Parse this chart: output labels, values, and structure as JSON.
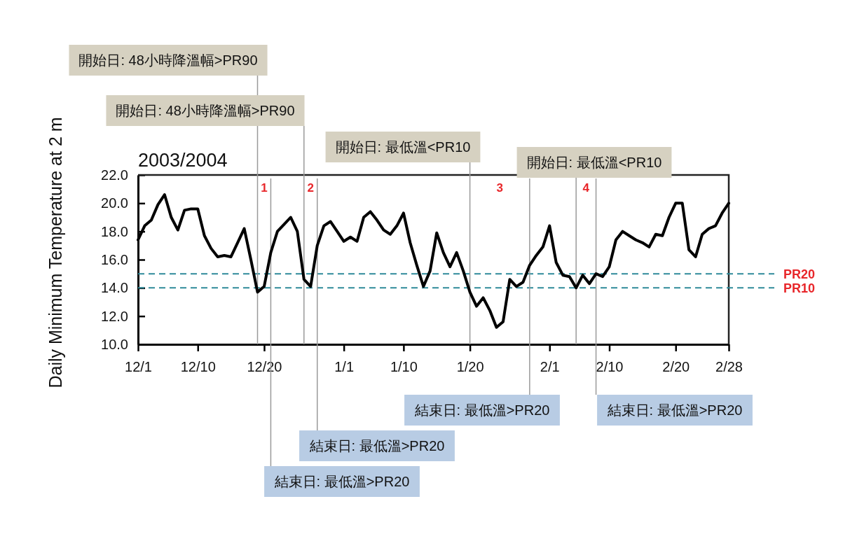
{
  "chart_data": {
    "type": "line",
    "title": "2003/2004",
    "ylabel": "Daily Minimum Temperature at 2 m",
    "x": [
      "2003-12-01",
      "2003-12-02",
      "2003-12-03",
      "2003-12-04",
      "2003-12-05",
      "2003-12-06",
      "2003-12-07",
      "2003-12-08",
      "2003-12-09",
      "2003-12-10",
      "2003-12-11",
      "2003-12-12",
      "2003-12-13",
      "2003-12-14",
      "2003-12-15",
      "2003-12-16",
      "2003-12-17",
      "2003-12-18",
      "2003-12-19",
      "2003-12-20",
      "2003-12-21",
      "2003-12-22",
      "2003-12-23",
      "2003-12-24",
      "2003-12-25",
      "2003-12-26",
      "2003-12-27",
      "2003-12-28",
      "2003-12-29",
      "2003-12-30",
      "2003-12-31",
      "2004-01-01",
      "2004-01-02",
      "2004-01-03",
      "2004-01-04",
      "2004-01-05",
      "2004-01-06",
      "2004-01-07",
      "2004-01-08",
      "2004-01-09",
      "2004-01-10",
      "2004-01-11",
      "2004-01-12",
      "2004-01-13",
      "2004-01-14",
      "2004-01-15",
      "2004-01-16",
      "2004-01-17",
      "2004-01-18",
      "2004-01-19",
      "2004-01-20",
      "2004-01-21",
      "2004-01-22",
      "2004-01-23",
      "2004-01-24",
      "2004-01-25",
      "2004-01-26",
      "2004-01-27",
      "2004-01-28",
      "2004-01-29",
      "2004-01-30",
      "2004-01-31",
      "2004-02-01",
      "2004-02-02",
      "2004-02-03",
      "2004-02-04",
      "2004-02-05",
      "2004-02-06",
      "2004-02-07",
      "2004-02-08",
      "2004-02-09",
      "2004-02-10",
      "2004-02-11",
      "2004-02-12",
      "2004-02-13",
      "2004-02-14",
      "2004-02-15",
      "2004-02-16",
      "2004-02-17",
      "2004-02-18",
      "2004-02-19",
      "2004-02-20",
      "2004-02-21",
      "2004-02-22",
      "2004-02-23",
      "2004-02-24",
      "2004-02-25",
      "2004-02-26",
      "2004-02-27",
      "2004-02-28"
    ],
    "series": [
      {
        "color": "#000000",
        "values": [
          17.4,
          18.4,
          18.8,
          19.9,
          20.6,
          19.0,
          18.1,
          19.5,
          19.6,
          19.6,
          17.7,
          16.8,
          16.2,
          16.3,
          16.2,
          17.2,
          18.2,
          16.0,
          13.7,
          14.1,
          16.5,
          18.0,
          18.5,
          19.0,
          18.0,
          14.6,
          14.1,
          17.0,
          18.4,
          18.7,
          18.0,
          17.3,
          17.6,
          17.3,
          19.0,
          19.4,
          18.8,
          18.1,
          17.8,
          18.4,
          19.3,
          17.2,
          15.6,
          14.1,
          15.2,
          17.9,
          16.5,
          15.5,
          16.5,
          15.2,
          13.7,
          12.7,
          13.3,
          12.4,
          11.2,
          11.6,
          14.6,
          14.1,
          14.4,
          15.6,
          16.3,
          16.9,
          18.4,
          15.8,
          14.9,
          14.8,
          14.0,
          14.9,
          14.3,
          15.0,
          14.8,
          15.5,
          17.4,
          18.0,
          17.7,
          17.4,
          17.2,
          16.9,
          17.8,
          17.7,
          19.0,
          20.0,
          20.0,
          16.7,
          16.2,
          17.8,
          18.2,
          18.4,
          19.3,
          20.0
        ]
      }
    ],
    "xlim": [
      "2003-12-01",
      "2004-02-28"
    ],
    "xticks": [
      {
        "value": "2003-12-01",
        "label": "12/1"
      },
      {
        "value": "2003-12-10",
        "label": "12/10"
      },
      {
        "value": "2003-12-20",
        "label": "12/20"
      },
      {
        "value": "2004-01-01",
        "label": "1/1"
      },
      {
        "value": "2004-01-10",
        "label": "1/10"
      },
      {
        "value": "2004-01-20",
        "label": "1/20"
      },
      {
        "value": "2004-02-01",
        "label": "2/1"
      },
      {
        "value": "2004-02-10",
        "label": "2/10"
      },
      {
        "value": "2004-02-20",
        "label": "2/20"
      },
      {
        "value": "2004-02-28",
        "label": "2/28"
      }
    ],
    "ylim": [
      10,
      22
    ],
    "yticks": [
      {
        "value": 10,
        "label": "10.0"
      },
      {
        "value": 12,
        "label": "12.0"
      },
      {
        "value": 14,
        "label": "14.0"
      },
      {
        "value": 16,
        "label": "16.0"
      },
      {
        "value": 18,
        "label": "18.0"
      },
      {
        "value": 20,
        "label": "20.0"
      },
      {
        "value": 22,
        "label": "22.0"
      }
    ],
    "ref_lines": [
      {
        "axis": "y",
        "value": 15,
        "label": "PR20",
        "color": "#2f8a9a",
        "line_style": "dashed"
      },
      {
        "axis": "y",
        "value": 14,
        "label": "PR10",
        "color": "#2f8a9a",
        "line_style": "dashed"
      },
      {
        "axis": "x",
        "value": "2003-12-19",
        "label": "開始日: 48小時降溫幅>PR90",
        "color": "#9a9a9a",
        "line_style": "solid"
      },
      {
        "axis": "x",
        "value": "2003-12-21",
        "label": "結束日: 最低溫>PR20",
        "color": "#9a9a9a",
        "line_style": "solid"
      },
      {
        "axis": "x",
        "value": "2003-12-26",
        "label": "開始日: 48小時降溫幅>PR90",
        "color": "#9a9a9a",
        "line_style": "solid"
      },
      {
        "axis": "x",
        "value": "2003-12-28",
        "label": "結束日: 最低溫>PR20",
        "color": "#9a9a9a",
        "line_style": "solid"
      },
      {
        "axis": "x",
        "value": "2004-01-20",
        "label": "開始日: 最低溫<PR10",
        "color": "#9a9a9a",
        "line_style": "solid"
      },
      {
        "axis": "x",
        "value": "2004-01-29",
        "label": "結束日: 最低溫>PR20",
        "color": "#9a9a9a",
        "line_style": "solid"
      },
      {
        "axis": "x",
        "value": "2004-02-05",
        "label": "開始日: 最低溫<PR10",
        "color": "#9a9a9a",
        "line_style": "solid"
      },
      {
        "axis": "x",
        "value": "2004-02-08",
        "label": "結束日: 最低溫>PR20",
        "color": "#9a9a9a",
        "line_style": "solid"
      }
    ],
    "annotations": [
      "1",
      "2",
      "3",
      "4"
    ]
  }
}
